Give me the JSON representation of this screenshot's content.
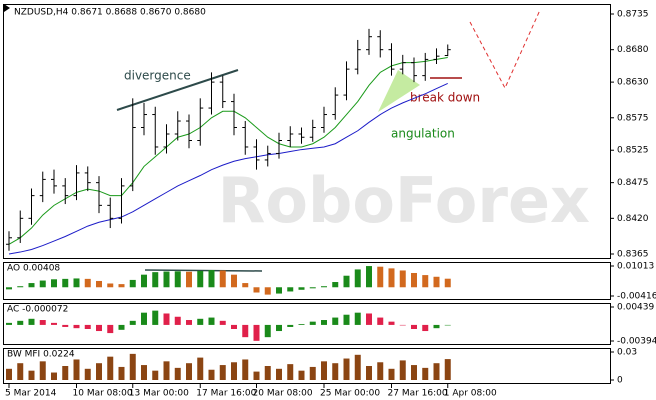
{
  "chart_data": {
    "type": "ohlc",
    "title": "NZDUSD,H4  0.8671 0.8688 0.8670 0.8680",
    "watermark": "RoboForex",
    "annotations": [
      "divergence",
      "break down",
      "angulation"
    ],
    "categories": [
      "5 Mar 2014",
      null,
      null,
      null,
      null,
      null,
      "10 Mar 08:00",
      null,
      null,
      null,
      null,
      "13 Mar 00:00",
      null,
      null,
      null,
      null,
      null,
      "17 Mar 16:00",
      null,
      null,
      null,
      null,
      "20 Mar 08:00",
      null,
      null,
      null,
      null,
      null,
      "25 Mar 00:00",
      null,
      null,
      null,
      null,
      null,
      "27 Mar 16:00",
      null,
      null,
      null,
      null,
      "1 Apr 08:00"
    ],
    "open": [
      0.838,
      0.839,
      0.842,
      0.8455,
      0.848,
      0.847,
      0.8455,
      0.849,
      0.8475,
      0.844,
      0.842,
      0.847,
      0.856,
      0.858,
      0.853,
      0.855,
      0.857,
      0.854,
      0.859,
      0.863,
      0.86,
      0.856,
      0.853,
      0.851,
      0.852,
      0.854,
      0.855,
      0.8545,
      0.856,
      0.858,
      0.861,
      0.865,
      0.868,
      0.87,
      0.868,
      0.865,
      0.866,
      0.864,
      0.8665,
      0.8671
    ],
    "high": [
      0.84,
      0.8432,
      0.8466,
      0.8492,
      0.8495,
      0.8482,
      0.8502,
      0.85,
      0.8485,
      0.8452,
      0.8482,
      0.8605,
      0.8598,
      0.8592,
      0.8565,
      0.8585,
      0.858,
      0.8605,
      0.8645,
      0.864,
      0.8612,
      0.857,
      0.8542,
      0.8532,
      0.8552,
      0.8562,
      0.856,
      0.8572,
      0.8592,
      0.8622,
      0.8662,
      0.8695,
      0.8712,
      0.871,
      0.869,
      0.8672,
      0.8668,
      0.8675,
      0.8682,
      0.8688
    ],
    "low": [
      0.837,
      0.8382,
      0.841,
      0.8445,
      0.8458,
      0.8442,
      0.8448,
      0.8462,
      0.8428,
      0.8405,
      0.8412,
      0.8462,
      0.8548,
      0.8518,
      0.852,
      0.854,
      0.8528,
      0.8532,
      0.858,
      0.859,
      0.8548,
      0.8518,
      0.8495,
      0.85,
      0.8512,
      0.853,
      0.8535,
      0.8538,
      0.8552,
      0.8572,
      0.8602,
      0.8642,
      0.8672,
      0.8668,
      0.864,
      0.8642,
      0.863,
      0.8632,
      0.8658,
      0.867
    ],
    "close": [
      0.839,
      0.842,
      0.8455,
      0.848,
      0.847,
      0.8455,
      0.849,
      0.8475,
      0.844,
      0.842,
      0.847,
      0.856,
      0.858,
      0.853,
      0.855,
      0.857,
      0.854,
      0.859,
      0.863,
      0.86,
      0.856,
      0.853,
      0.851,
      0.852,
      0.854,
      0.855,
      0.8545,
      0.856,
      0.858,
      0.861,
      0.865,
      0.868,
      0.87,
      0.868,
      0.865,
      0.866,
      0.864,
      0.8665,
      0.867,
      0.868
    ],
    "bar_color": "#000000",
    "overlays": [
      {
        "color": "#1a9a1a",
        "values": [
          0.838,
          0.839,
          0.8405,
          0.8425,
          0.844,
          0.845,
          0.846,
          0.8465,
          0.8462,
          0.8455,
          0.8455,
          0.8475,
          0.85,
          0.8515,
          0.853,
          0.8545,
          0.855,
          0.856,
          0.8575,
          0.8585,
          0.8585,
          0.8575,
          0.856,
          0.8545,
          0.8535,
          0.853,
          0.853,
          0.8535,
          0.8545,
          0.856,
          0.858,
          0.86,
          0.8625,
          0.8645,
          0.8655,
          0.866,
          0.866,
          0.8662,
          0.8665,
          0.8668
        ]
      },
      {
        "color": "#1c1cc8",
        "values": [
          0.8365,
          0.8368,
          0.8372,
          0.8378,
          0.8385,
          0.8392,
          0.84,
          0.8408,
          0.8414,
          0.8418,
          0.8422,
          0.843,
          0.844,
          0.845,
          0.846,
          0.847,
          0.8478,
          0.8486,
          0.8495,
          0.8502,
          0.8508,
          0.8512,
          0.8515,
          0.8518,
          0.852,
          0.8523,
          0.8526,
          0.8528,
          0.853,
          0.8535,
          0.8545,
          0.8555,
          0.8568,
          0.858,
          0.859,
          0.8598,
          0.8605,
          0.8612,
          0.862,
          0.8628
        ]
      }
    ],
    "ylim": [
      0.8365,
      0.8735
    ],
    "yticks": [
      0.8735,
      {
        "value": 0.868,
        "label": "0.8680"
      },
      {
        "value": 0.863,
        "label": "0.8630"
      },
      0.8575,
      0.8525,
      0.8475,
      {
        "value": 0.842,
        "label": "0.8420"
      },
      0.8365
    ],
    "panes": [
      {
        "type": "histogram",
        "label": "AO 0.00408",
        "up_color": "#1a8a1a",
        "down_color": "#d2691e",
        "values": [
          -0.001,
          0.0005,
          0.002,
          0.0032,
          0.0038,
          0.004,
          0.0042,
          0.004,
          0.003,
          0.0018,
          0.0015,
          0.0035,
          0.006,
          0.0072,
          0.0075,
          0.0076,
          0.0074,
          0.0078,
          0.0082,
          0.008,
          0.006,
          0.002,
          -0.0025,
          -0.0035,
          -0.003,
          -0.002,
          -0.0012,
          -0.0005,
          0.0005,
          0.0025,
          0.0055,
          0.0085,
          0.0101,
          0.0098,
          0.009,
          0.008,
          0.0068,
          0.0058,
          0.005,
          0.00408
        ],
        "ylim": [
          -0.00416,
          0.01013
        ],
        "yticks": [
          0.01013,
          -0.00416
        ]
      },
      {
        "type": "histogram",
        "label": "AC -0.000072",
        "up_color": "#1a8a1a",
        "down_color": "#e0204a",
        "values": [
          0.0005,
          0.001,
          0.0015,
          0.0012,
          0.0005,
          -0.0005,
          -0.0008,
          -0.001,
          -0.0015,
          -0.002,
          -0.0012,
          0.001,
          0.003,
          0.0035,
          0.0028,
          0.002,
          0.0012,
          0.0015,
          0.0018,
          0.001,
          -0.001,
          -0.003,
          -0.0039,
          -0.003,
          -0.0015,
          -0.0005,
          0.0002,
          0.0008,
          0.0012,
          0.0018,
          0.0025,
          0.003,
          0.0028,
          0.0018,
          0.0008,
          0.0,
          -0.001,
          -0.0015,
          -0.0008,
          -7.2e-05
        ],
        "ylim": [
          -0.00394,
          0.00439
        ],
        "yticks": [
          0.00439,
          -0.00394
        ]
      },
      {
        "type": "histogram",
        "label": "BW MFI 0.0224",
        "up_color": "#8b4513",
        "down_color": "#8b4513",
        "values": [
          0.012,
          0.018,
          0.01,
          0.02,
          0.008,
          0.015,
          0.022,
          0.012,
          0.018,
          0.025,
          0.014,
          0.028,
          0.016,
          0.01,
          0.02,
          0.013,
          0.018,
          0.024,
          0.011,
          0.016,
          0.019,
          0.022,
          0.009,
          0.015,
          0.012,
          0.017,
          0.01,
          0.014,
          0.02,
          0.018,
          0.023,
          0.027,
          0.015,
          0.019,
          0.012,
          0.021,
          0.016,
          0.013,
          0.018,
          0.0224
        ],
        "ylim": [
          0,
          0.03
        ],
        "yticks": [
          0.03,
          0
        ]
      }
    ]
  }
}
